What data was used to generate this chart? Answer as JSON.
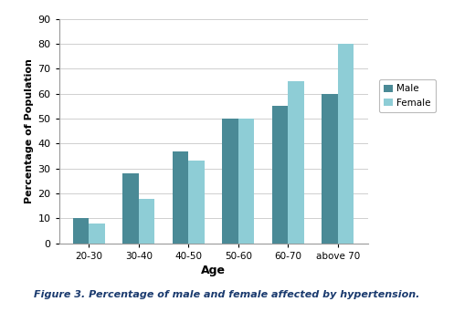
{
  "categories": [
    "20-30",
    "30-40",
    "40-50",
    "50-60",
    "60-70",
    "above 70"
  ],
  "male_values": [
    10,
    28,
    37,
    50,
    55,
    60
  ],
  "female_values": [
    8,
    18,
    33,
    50,
    65,
    80
  ],
  "male_color": "#4a8a96",
  "female_color": "#8ecdd6",
  "ylabel": "Percentage of Population",
  "xlabel": "Age",
  "ylim": [
    0,
    90
  ],
  "yticks": [
    0,
    10,
    20,
    30,
    40,
    50,
    60,
    70,
    80,
    90
  ],
  "legend_labels": [
    "Male",
    "Female"
  ],
  "caption": "Figure 3. Percentage of male and female affected by hypertension.",
  "bar_width": 0.32
}
